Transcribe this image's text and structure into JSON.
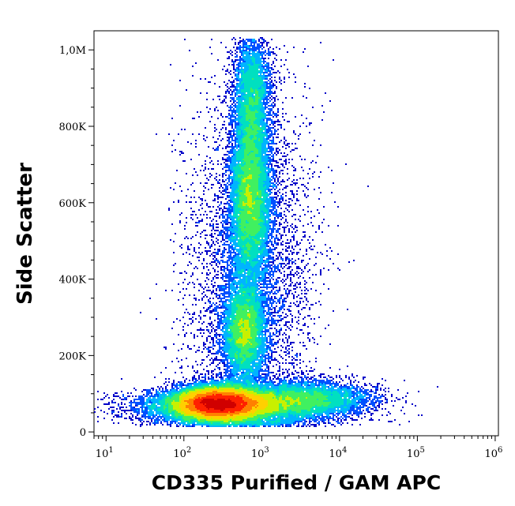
{
  "chart_data": {
    "type": "scatter",
    "style": "density-dot-plot",
    "xlabel": "CD335 Purified / GAM APC",
    "ylabel": "Side Scatter",
    "x_scale": "log",
    "y_scale": "linear",
    "xlim": [
      7,
      1100000
    ],
    "ylim": [
      -10000,
      1050000
    ],
    "x_ticks": [
      {
        "base": "10",
        "exp": "1",
        "value": 10
      },
      {
        "base": "10",
        "exp": "2",
        "value": 100
      },
      {
        "base": "10",
        "exp": "3",
        "value": 1000
      },
      {
        "base": "10",
        "exp": "4",
        "value": 10000
      },
      {
        "base": "10",
        "exp": "5",
        "value": 100000
      },
      {
        "base": "10",
        "exp": "6",
        "value": 1000000
      }
    ],
    "y_ticks": [
      {
        "label": "0",
        "value": 0
      },
      {
        "label": "200K",
        "value": 200000
      },
      {
        "label": "400K",
        "value": 400000
      },
      {
        "label": "600K",
        "value": 600000
      },
      {
        "label": "800K",
        "value": 800000
      },
      {
        "label": "1,0M",
        "value": 1000000
      }
    ],
    "populations": [
      {
        "x_log10_center": 2.45,
        "y_center": 75000,
        "x_log10_sd": 0.28,
        "y_sd": 22000,
        "weight": 0.34
      },
      {
        "x_log10_center": 2.5,
        "y_center": 65000,
        "x_log10_sd": 0.55,
        "y_sd": 22000,
        "weight": 0.14
      },
      {
        "x_log10_center": 3.5,
        "y_center": 85000,
        "x_log10_sd": 0.45,
        "y_sd": 25000,
        "weight": 0.1
      },
      {
        "x_log10_center": 2.78,
        "y_center": 260000,
        "x_log10_sd": 0.14,
        "y_sd": 65000,
        "weight": 0.1
      },
      {
        "x_log10_center": 2.85,
        "y_center": 610000,
        "x_log10_sd": 0.13,
        "y_sd": 120000,
        "weight": 0.16
      },
      {
        "x_log10_center": 2.88,
        "y_center": 880000,
        "x_log10_sd": 0.12,
        "y_sd": 90000,
        "weight": 0.07
      },
      {
        "x_log10_center": 2.85,
        "y_center": 400000,
        "x_log10_sd": 0.4,
        "y_sd": 250000,
        "weight": 0.09
      }
    ],
    "colormap": [
      "#0000c8",
      "#0050ff",
      "#00b4ff",
      "#00e0c0",
      "#40f060",
      "#c8f000",
      "#ffd000",
      "#ff8000",
      "#ff2000",
      "#d00000"
    ],
    "grid": false,
    "legend": "none"
  }
}
